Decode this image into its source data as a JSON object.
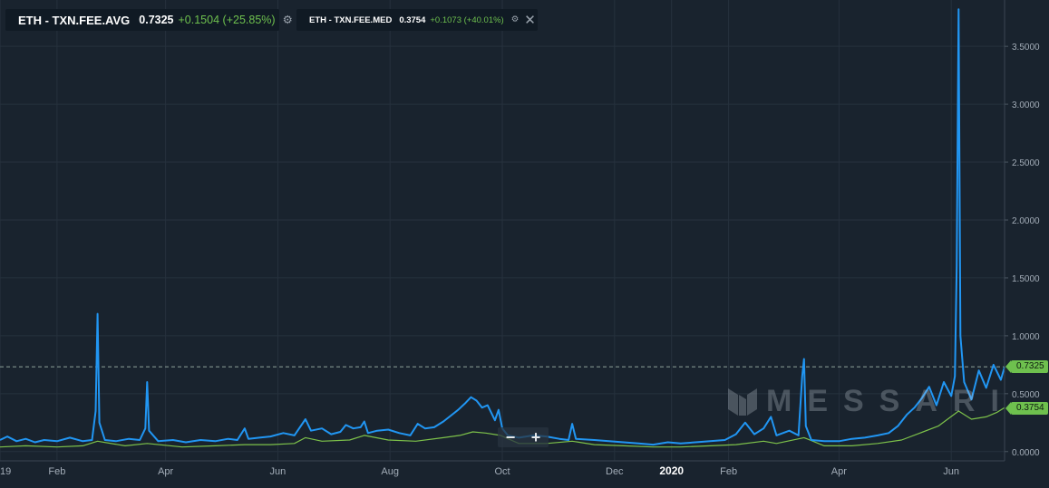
{
  "colors": {
    "background": "#19232e",
    "grid": "#26313d",
    "avg_series": "#2196f3",
    "med_series": "#7dc24a",
    "tag_green": "#6ec04e",
    "axis_text": "#a3adb8"
  },
  "legends": [
    {
      "name": "ETH - TXN.FEE.AVG",
      "value": "0.7325",
      "change": "+0.1504",
      "change_pct": "(+25.85%)",
      "icons": [
        "gear-icon"
      ]
    },
    {
      "name": "ETH - TXN.FEE.MED",
      "value": "0.3754",
      "change": "+0.1073",
      "change_pct": "(+40.01%)",
      "icons": [
        "gear-icon",
        "close-icon"
      ]
    }
  ],
  "price_tags": {
    "avg": "0.7325",
    "med": "0.3754"
  },
  "zoom": {
    "minus": "−",
    "plus": "+"
  },
  "watermark": "MESSARI",
  "chart_data": {
    "type": "line",
    "x_ticks": [
      {
        "label": "19",
        "date": "2019-01-01"
      },
      {
        "label": "Feb",
        "date": "2019-02-01"
      },
      {
        "label": "Apr",
        "date": "2019-04-01"
      },
      {
        "label": "Jun",
        "date": "2019-06-01"
      },
      {
        "label": "Aug",
        "date": "2019-08-01"
      },
      {
        "label": "Oct",
        "date": "2019-10-01"
      },
      {
        "label": "Dec",
        "date": "2019-12-01"
      },
      {
        "label": "2020",
        "date": "2020-01-01"
      },
      {
        "label": "Feb",
        "date": "2020-02-01"
      },
      {
        "label": "Apr",
        "date": "2020-04-01"
      },
      {
        "label": "Jun",
        "date": "2020-06-01"
      }
    ],
    "xlim": [
      "2019-01-01",
      "2020-06-30"
    ],
    "y_ticks": [
      "0.0000",
      "0.5000",
      "1.0000",
      "1.5000",
      "2.0000",
      "2.5000",
      "3.0000",
      "3.5000"
    ],
    "ylim": [
      -0.08,
      3.9
    ],
    "y_axis_position": "right",
    "grid": true,
    "reference_line": 0.7325,
    "series": [
      {
        "key": "avg",
        "points": [
          [
            "2019-01-01",
            0.1
          ],
          [
            "2019-01-05",
            0.13
          ],
          [
            "2019-01-10",
            0.09
          ],
          [
            "2019-01-15",
            0.11
          ],
          [
            "2019-01-20",
            0.08
          ],
          [
            "2019-01-25",
            0.1
          ],
          [
            "2019-02-01",
            0.09
          ],
          [
            "2019-02-08",
            0.12
          ],
          [
            "2019-02-15",
            0.09
          ],
          [
            "2019-02-20",
            0.1
          ],
          [
            "2019-02-22",
            0.35
          ],
          [
            "2019-02-23",
            1.19
          ],
          [
            "2019-02-24",
            0.25
          ],
          [
            "2019-02-27",
            0.1
          ],
          [
            "2019-03-05",
            0.09
          ],
          [
            "2019-03-12",
            0.11
          ],
          [
            "2019-03-18",
            0.1
          ],
          [
            "2019-03-21",
            0.2
          ],
          [
            "2019-03-22",
            0.6
          ],
          [
            "2019-03-23",
            0.18
          ],
          [
            "2019-03-28",
            0.09
          ],
          [
            "2019-04-05",
            0.1
          ],
          [
            "2019-04-12",
            0.08
          ],
          [
            "2019-04-20",
            0.1
          ],
          [
            "2019-04-28",
            0.09
          ],
          [
            "2019-05-05",
            0.11
          ],
          [
            "2019-05-10",
            0.1
          ],
          [
            "2019-05-14",
            0.2
          ],
          [
            "2019-05-16",
            0.11
          ],
          [
            "2019-05-22",
            0.12
          ],
          [
            "2019-05-28",
            0.13
          ],
          [
            "2019-06-04",
            0.16
          ],
          [
            "2019-06-10",
            0.14
          ],
          [
            "2019-06-16",
            0.28
          ],
          [
            "2019-06-19",
            0.18
          ],
          [
            "2019-06-25",
            0.2
          ],
          [
            "2019-06-30",
            0.15
          ],
          [
            "2019-07-05",
            0.17
          ],
          [
            "2019-07-08",
            0.23
          ],
          [
            "2019-07-12",
            0.2
          ],
          [
            "2019-07-16",
            0.21
          ],
          [
            "2019-07-18",
            0.26
          ],
          [
            "2019-07-20",
            0.16
          ],
          [
            "2019-07-25",
            0.18
          ],
          [
            "2019-07-31",
            0.19
          ],
          [
            "2019-08-06",
            0.16
          ],
          [
            "2019-08-12",
            0.14
          ],
          [
            "2019-08-16",
            0.24
          ],
          [
            "2019-08-20",
            0.2
          ],
          [
            "2019-08-25",
            0.21
          ],
          [
            "2019-08-30",
            0.26
          ],
          [
            "2019-09-03",
            0.31
          ],
          [
            "2019-09-07",
            0.36
          ],
          [
            "2019-09-11",
            0.42
          ],
          [
            "2019-09-14",
            0.47
          ],
          [
            "2019-09-17",
            0.44
          ],
          [
            "2019-09-20",
            0.38
          ],
          [
            "2019-09-23",
            0.4
          ],
          [
            "2019-09-27",
            0.27
          ],
          [
            "2019-09-29",
            0.36
          ],
          [
            "2019-10-01",
            0.2
          ],
          [
            "2019-10-04",
            0.14
          ],
          [
            "2019-10-10",
            0.12
          ],
          [
            "2019-10-18",
            0.14
          ],
          [
            "2019-10-25",
            0.13
          ],
          [
            "2019-11-01",
            0.11
          ],
          [
            "2019-11-06",
            0.1
          ],
          [
            "2019-11-08",
            0.24
          ],
          [
            "2019-11-10",
            0.11
          ],
          [
            "2019-11-20",
            0.1
          ],
          [
            "2019-11-28",
            0.09
          ],
          [
            "2019-12-06",
            0.08
          ],
          [
            "2019-12-14",
            0.07
          ],
          [
            "2019-12-22",
            0.06
          ],
          [
            "2019-12-30",
            0.08
          ],
          [
            "2020-01-06",
            0.07
          ],
          [
            "2020-01-14",
            0.08
          ],
          [
            "2020-01-22",
            0.09
          ],
          [
            "2020-01-30",
            0.1
          ],
          [
            "2020-02-05",
            0.15
          ],
          [
            "2020-02-10",
            0.25
          ],
          [
            "2020-02-15",
            0.15
          ],
          [
            "2020-02-20",
            0.2
          ],
          [
            "2020-02-24",
            0.3
          ],
          [
            "2020-02-27",
            0.14
          ],
          [
            "2020-03-05",
            0.18
          ],
          [
            "2020-03-10",
            0.14
          ],
          [
            "2020-03-12",
            0.65
          ],
          [
            "2020-03-13",
            0.8
          ],
          [
            "2020-03-14",
            0.22
          ],
          [
            "2020-03-17",
            0.1
          ],
          [
            "2020-03-24",
            0.09
          ],
          [
            "2020-04-01",
            0.09
          ],
          [
            "2020-04-08",
            0.11
          ],
          [
            "2020-04-15",
            0.12
          ],
          [
            "2020-04-22",
            0.14
          ],
          [
            "2020-04-28",
            0.16
          ],
          [
            "2020-05-03",
            0.22
          ],
          [
            "2020-05-08",
            0.32
          ],
          [
            "2020-05-12",
            0.38
          ],
          [
            "2020-05-16",
            0.46
          ],
          [
            "2020-05-20",
            0.56
          ],
          [
            "2020-05-24",
            0.4
          ],
          [
            "2020-05-28",
            0.6
          ],
          [
            "2020-06-01",
            0.48
          ],
          [
            "2020-06-03",
            0.65
          ],
          [
            "2020-06-04",
            1.6
          ],
          [
            "2020-06-05",
            3.82
          ],
          [
            "2020-06-06",
            1.0
          ],
          [
            "2020-06-08",
            0.6
          ],
          [
            "2020-06-12",
            0.45
          ],
          [
            "2020-06-16",
            0.7
          ],
          [
            "2020-06-20",
            0.55
          ],
          [
            "2020-06-24",
            0.75
          ],
          [
            "2020-06-28",
            0.62
          ],
          [
            "2020-06-30",
            0.73
          ]
        ]
      },
      {
        "key": "med",
        "points": [
          [
            "2019-01-01",
            0.04
          ],
          [
            "2019-01-15",
            0.05
          ],
          [
            "2019-02-01",
            0.04
          ],
          [
            "2019-02-15",
            0.05
          ],
          [
            "2019-02-23",
            0.09
          ],
          [
            "2019-03-10",
            0.05
          ],
          [
            "2019-03-22",
            0.07
          ],
          [
            "2019-04-10",
            0.04
          ],
          [
            "2019-04-28",
            0.05
          ],
          [
            "2019-05-14",
            0.06
          ],
          [
            "2019-05-28",
            0.06
          ],
          [
            "2019-06-10",
            0.07
          ],
          [
            "2019-06-16",
            0.12
          ],
          [
            "2019-06-25",
            0.09
          ],
          [
            "2019-07-10",
            0.1
          ],
          [
            "2019-07-18",
            0.14
          ],
          [
            "2019-07-31",
            0.1
          ],
          [
            "2019-08-15",
            0.09
          ],
          [
            "2019-08-30",
            0.12
          ],
          [
            "2019-09-08",
            0.14
          ],
          [
            "2019-09-15",
            0.17
          ],
          [
            "2019-09-22",
            0.16
          ],
          [
            "2019-09-30",
            0.14
          ],
          [
            "2019-10-10",
            0.07
          ],
          [
            "2019-10-25",
            0.07
          ],
          [
            "2019-11-08",
            0.09
          ],
          [
            "2019-11-20",
            0.06
          ],
          [
            "2019-12-06",
            0.05
          ],
          [
            "2019-12-22",
            0.04
          ],
          [
            "2020-01-06",
            0.04
          ],
          [
            "2020-01-22",
            0.05
          ],
          [
            "2020-02-05",
            0.06
          ],
          [
            "2020-02-20",
            0.09
          ],
          [
            "2020-02-27",
            0.07
          ],
          [
            "2020-03-13",
            0.12
          ],
          [
            "2020-03-24",
            0.05
          ],
          [
            "2020-04-08",
            0.05
          ],
          [
            "2020-04-22",
            0.07
          ],
          [
            "2020-05-05",
            0.1
          ],
          [
            "2020-05-15",
            0.16
          ],
          [
            "2020-05-25",
            0.22
          ],
          [
            "2020-06-05",
            0.35
          ],
          [
            "2020-06-12",
            0.28
          ],
          [
            "2020-06-20",
            0.3
          ],
          [
            "2020-06-26",
            0.34
          ],
          [
            "2020-06-30",
            0.38
          ]
        ]
      }
    ]
  }
}
